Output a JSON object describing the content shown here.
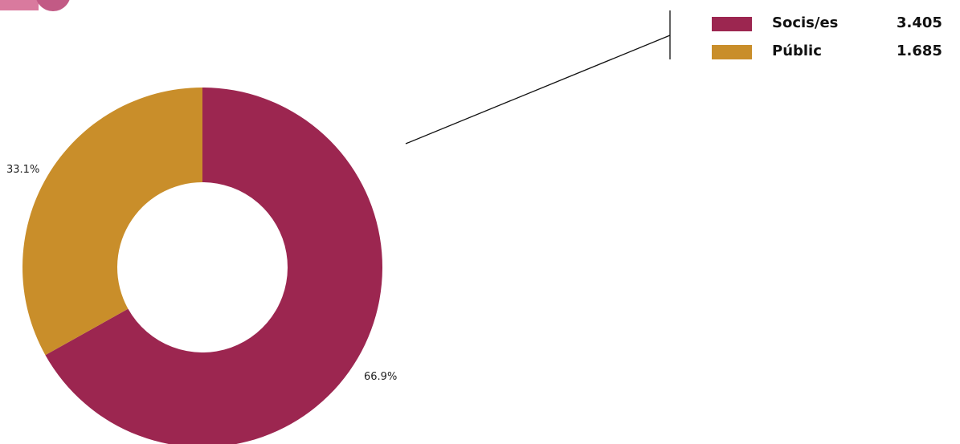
{
  "chart_data": {
    "type": "pie",
    "variant": "donut",
    "title": "",
    "categories": [
      "Socis/es",
      "Públic"
    ],
    "values": [
      3405,
      1685
    ],
    "value_labels": [
      "3.405",
      "1.685"
    ],
    "percent_labels": [
      "66.9%",
      "33.1%"
    ],
    "colors": [
      "#9c2650",
      "#c98e2a"
    ],
    "start": "top",
    "direction": "clockwise",
    "legend_position": "top-right"
  },
  "decor": {
    "corner_badge_colors": [
      "#d97a9e",
      "#c25a85"
    ],
    "leader_line_color": "#111111"
  }
}
